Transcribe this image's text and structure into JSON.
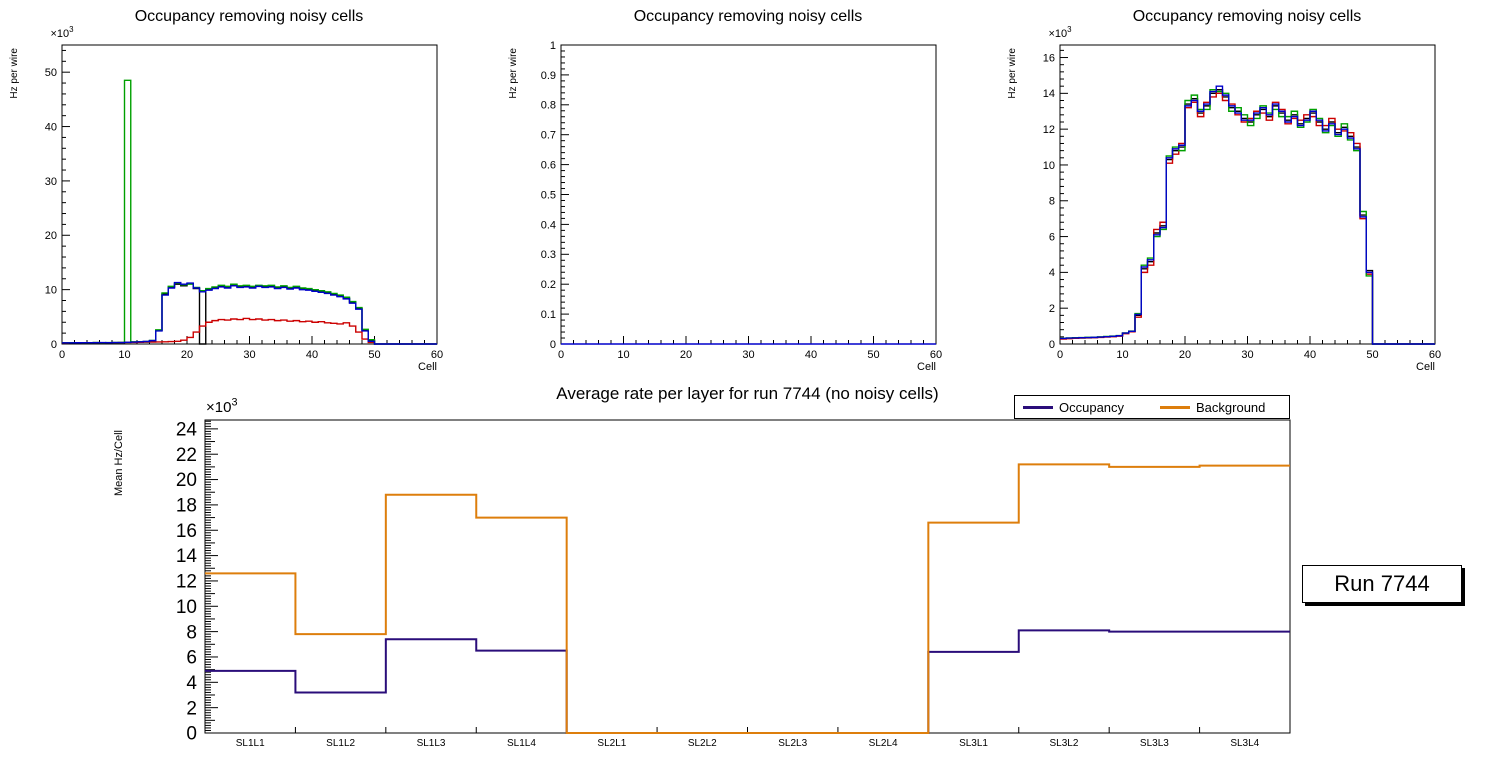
{
  "page": {
    "background": "#ffffff"
  },
  "run_label": "Run 7744",
  "chart_data": [
    {
      "id": "occupancy-left",
      "type": "line",
      "style": "histogram-step",
      "title": "Occupancy removing noisy cells",
      "xlabel": "Cell",
      "ylabel": "Hz per wire",
      "exponent": "3",
      "x": {
        "min": 0,
        "max": 60,
        "major": 10,
        "minor": 2
      },
      "y": {
        "min": 0,
        "max": 55000,
        "major": 10000,
        "minor": 2000,
        "scale": 1000,
        "decimals": 0
      },
      "series": [
        {
          "name": "hist-black",
          "color": "#000000",
          "values": [
            200,
            240,
            220,
            250,
            230,
            260,
            240,
            250,
            260,
            270,
            300,
            350,
            400,
            450,
            600,
            2500,
            9200,
            10400,
            11000,
            10700,
            11100,
            10200,
            0,
            10000,
            10300,
            10600,
            10400,
            10800,
            10500,
            10600,
            10400,
            10700,
            10500,
            10600,
            10300,
            10500,
            10200,
            10400,
            10100,
            10000,
            9800,
            9600,
            9400,
            9100,
            8800,
            8400,
            7600,
            6500,
            2500,
            600,
            0,
            0,
            0,
            0,
            0,
            0,
            0,
            0,
            0,
            0
          ]
        },
        {
          "name": "hist-red",
          "color": "#cc0000",
          "values": [
            200,
            220,
            210,
            230,
            220,
            240,
            230,
            250,
            240,
            260,
            280,
            300,
            320,
            340,
            360,
            380,
            400,
            450,
            500,
            700,
            1200,
            2200,
            3300,
            4000,
            4300,
            4500,
            4400,
            4600,
            4500,
            4700,
            4500,
            4600,
            4400,
            4500,
            4300,
            4400,
            4200,
            4300,
            4100,
            4200,
            4000,
            4100,
            3900,
            3800,
            3700,
            3900,
            3300,
            2200,
            900,
            300,
            0,
            0,
            0,
            0,
            0,
            0,
            0,
            0,
            0,
            0
          ]
        },
        {
          "name": "hist-green",
          "color": "#00a000",
          "values": [
            220,
            230,
            240,
            250,
            240,
            260,
            250,
            260,
            270,
            280,
            48500,
            400,
            420,
            450,
            650,
            2600,
            9400,
            10600,
            11200,
            10900,
            11000,
            10400,
            9800,
            10200,
            10500,
            10800,
            10600,
            11000,
            10700,
            10800,
            10600,
            10800,
            10700,
            10800,
            10500,
            10700,
            10400,
            10600,
            10300,
            10200,
            10000,
            9800,
            9600,
            9300,
            9000,
            8600,
            7800,
            6700,
            2700,
            800,
            0,
            0,
            0,
            0,
            0,
            0,
            0,
            0,
            0,
            0
          ]
        },
        {
          "name": "hist-blue",
          "color": "#0000cc",
          "values": [
            210,
            220,
            230,
            240,
            250,
            240,
            260,
            250,
            260,
            270,
            310,
            360,
            410,
            460,
            620,
            2400,
            9000,
            10300,
            11300,
            11000,
            11200,
            10300,
            9600,
            9900,
            10200,
            10500,
            10300,
            10700,
            10400,
            10500,
            10300,
            10600,
            10400,
            10500,
            10200,
            10400,
            10100,
            10300,
            10000,
            9900,
            9700,
            9500,
            9300,
            9000,
            8700,
            8300,
            7500,
            6400,
            2400,
            500,
            0,
            0,
            0,
            0,
            0,
            0,
            0,
            0,
            0,
            0
          ]
        }
      ]
    },
    {
      "id": "occupancy-middle",
      "type": "line",
      "style": "histogram-step",
      "title": "Occupancy removing noisy cells",
      "xlabel": "Cell",
      "ylabel": "Hz per wire",
      "exponent": null,
      "x": {
        "min": 0,
        "max": 60,
        "major": 10,
        "minor": 2
      },
      "y": {
        "min": 0,
        "max": 1,
        "major": 0.1,
        "minor": 0.02,
        "scale": 1,
        "decimals": 1
      },
      "series": [
        {
          "name": "hist-blue",
          "color": "#0000cc",
          "values": [
            0,
            0,
            0,
            0,
            0,
            0,
            0,
            0,
            0,
            0,
            0,
            0,
            0,
            0,
            0,
            0,
            0,
            0,
            0,
            0,
            0,
            0,
            0,
            0,
            0,
            0,
            0,
            0,
            0,
            0,
            0,
            0,
            0,
            0,
            0,
            0,
            0,
            0,
            0,
            0,
            0,
            0,
            0,
            0,
            0,
            0,
            0,
            0,
            0,
            0,
            0,
            0,
            0,
            0,
            0,
            0,
            0,
            0,
            0,
            0
          ]
        }
      ]
    },
    {
      "id": "occupancy-right",
      "type": "line",
      "style": "histogram-step",
      "title": "Occupancy removing noisy cells",
      "xlabel": "Cell",
      "ylabel": "Hz per wire",
      "exponent": "3",
      "x": {
        "min": 0,
        "max": 60,
        "major": 10,
        "minor": 2
      },
      "y": {
        "min": 0,
        "max": 16700,
        "major": 2000,
        "minor": 400,
        "scale": 1000,
        "decimals": 0
      },
      "series": [
        {
          "name": "hist-black",
          "color": "#000000",
          "values": [
            300,
            320,
            330,
            340,
            350,
            360,
            380,
            400,
            420,
            450,
            600,
            700,
            1600,
            4200,
            4600,
            6200,
            6600,
            10300,
            10800,
            11000,
            13400,
            13700,
            12900,
            13300,
            14000,
            14200,
            13800,
            13200,
            13000,
            12600,
            12400,
            12800,
            13100,
            12700,
            13300,
            12900,
            12500,
            12800,
            12300,
            12600,
            12900,
            12400,
            12000,
            12400,
            11800,
            12100,
            11600,
            11000,
            7200,
            4100,
            0,
            0,
            0,
            0,
            0,
            0,
            0,
            0,
            0,
            0
          ]
        },
        {
          "name": "hist-red",
          "color": "#cc0000",
          "values": [
            280,
            300,
            320,
            330,
            340,
            350,
            370,
            390,
            410,
            440,
            580,
            680,
            1500,
            4000,
            4400,
            6400,
            6800,
            10100,
            10600,
            11200,
            13200,
            13500,
            12700,
            13500,
            13800,
            14000,
            13600,
            13400,
            12800,
            12400,
            12600,
            13000,
            12900,
            12500,
            13500,
            13100,
            12300,
            12600,
            12500,
            12800,
            12700,
            12200,
            12200,
            12600,
            12000,
            11900,
            11800,
            11200,
            7000,
            3900,
            0,
            0,
            0,
            0,
            0,
            0,
            0,
            0,
            0,
            0
          ]
        },
        {
          "name": "hist-green",
          "color": "#00a000",
          "values": [
            320,
            340,
            350,
            360,
            370,
            380,
            400,
            420,
            440,
            470,
            620,
            720,
            1700,
            4400,
            4800,
            6000,
            6400,
            10500,
            11000,
            10800,
            13600,
            13900,
            13100,
            13100,
            14200,
            14100,
            14000,
            13000,
            13200,
            12800,
            12200,
            12600,
            13300,
            12900,
            13100,
            12700,
            12700,
            13000,
            12100,
            12400,
            13100,
            12600,
            11800,
            12200,
            11600,
            12300,
            11400,
            10800,
            7400,
            3800,
            0,
            0,
            0,
            0,
            0,
            0,
            0,
            0,
            0,
            0
          ]
        },
        {
          "name": "hist-blue",
          "color": "#0000cc",
          "values": [
            310,
            330,
            340,
            350,
            360,
            370,
            390,
            410,
            430,
            460,
            610,
            710,
            1650,
            4300,
            4700,
            6100,
            6500,
            10400,
            10900,
            11100,
            13300,
            13600,
            13000,
            13400,
            14100,
            14400,
            13900,
            13300,
            12900,
            12500,
            12500,
            12900,
            13200,
            12800,
            13400,
            13000,
            12400,
            12700,
            12200,
            12500,
            13000,
            12500,
            11900,
            12300,
            11700,
            12000,
            11500,
            10900,
            7100,
            4000,
            0,
            0,
            0,
            0,
            0,
            0,
            0,
            0,
            0,
            0
          ]
        }
      ]
    },
    {
      "id": "avg-rate-per-layer",
      "type": "line",
      "style": "category-step",
      "title": "Average rate per layer for run 7744 (no noisy cells)",
      "xlabel": "",
      "ylabel": "Mean Hz/Cell",
      "exponent": "3",
      "categories": [
        "SL1L1",
        "SL1L2",
        "SL1L3",
        "SL1L4",
        "SL2L1",
        "SL2L2",
        "SL2L3",
        "SL2L4",
        "SL3L1",
        "SL3L2",
        "SL3L3",
        "SL3L4"
      ],
      "y": {
        "min": 0,
        "max": 24700,
        "major": 2000,
        "minor": 200,
        "scale": 1000,
        "decimals": 0
      },
      "series": [
        {
          "name": "Occupancy",
          "color": "#2a0d7a",
          "values": [
            4900,
            3200,
            7400,
            6500,
            0,
            0,
            0,
            0,
            6400,
            8100,
            8000,
            8000
          ]
        },
        {
          "name": "Background",
          "color": "#dd7e0c",
          "values": [
            12600,
            7800,
            18800,
            17000,
            0,
            0,
            0,
            0,
            16600,
            21200,
            21000,
            21100
          ]
        }
      ],
      "legend": {
        "position": "top-right",
        "entries": [
          "Occupancy",
          "Background"
        ]
      }
    }
  ]
}
